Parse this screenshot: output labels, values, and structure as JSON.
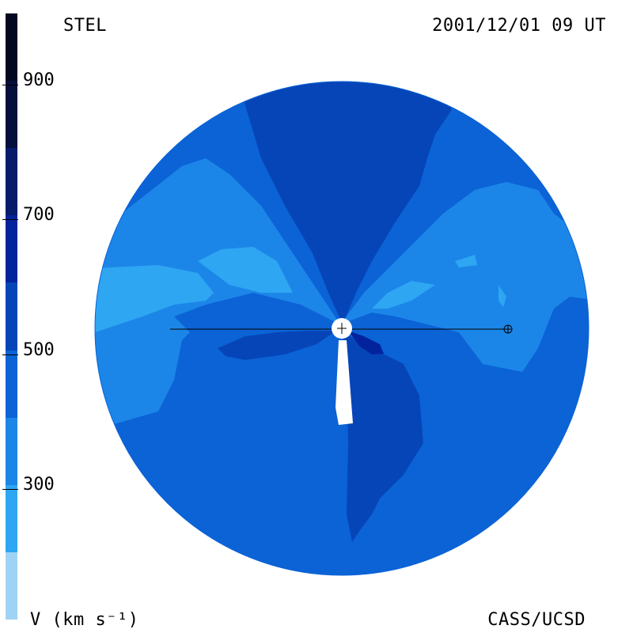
{
  "header": {
    "instrument": "STEL",
    "datetime": "2001/12/01 09 UT"
  },
  "footer": {
    "units_label": "V (km s⁻¹)",
    "credit": "CASS/UCSD"
  },
  "colorbar": {
    "ticks": [
      "300",
      "500",
      "700",
      "900"
    ],
    "levels": [
      {
        "min": 100,
        "max": 200,
        "color": "#9fd3f5"
      },
      {
        "min": 200,
        "max": 300,
        "color": "#2ea6f2"
      },
      {
        "min": 300,
        "max": 400,
        "color": "#1c86e8"
      },
      {
        "min": 400,
        "max": 500,
        "color": "#0b63d6"
      },
      {
        "min": 500,
        "max": 600,
        "color": "#0645b8"
      },
      {
        "min": 600,
        "max": 700,
        "color": "#03239c"
      },
      {
        "min": 700,
        "max": 800,
        "color": "#061b6a"
      },
      {
        "min": 800,
        "max": 900,
        "color": "#040f3c"
      },
      {
        "min": 900,
        "max": 1000,
        "color": "#030722"
      }
    ]
  },
  "map": {
    "background_color": "#0b63d6",
    "center_marker": "sun-symbol",
    "earth_marker": "earth-symbol"
  }
}
